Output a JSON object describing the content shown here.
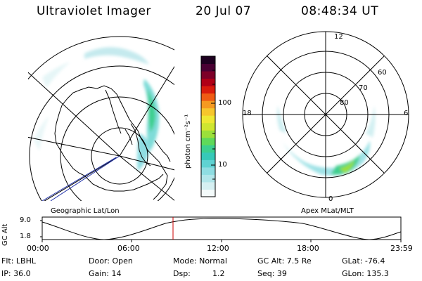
{
  "header": {
    "instrument": "Ultraviolet Imager",
    "date": "20 Jul 07",
    "time": "08:48:34 UT"
  },
  "colorbar": {
    "unit": "photon cm⁻²s⁻¹",
    "tick_100": "100",
    "tick_10": "10",
    "colors": [
      "#f4fbfb",
      "#d6f0f2",
      "#b2e6ea",
      "#8fdde2",
      "#5fd2d2",
      "#37c9b8",
      "#3ccf8f",
      "#5fd95a",
      "#9be03a",
      "#cfe630",
      "#eee833",
      "#f6c62c",
      "#f59a20",
      "#ef5b13",
      "#d91c0c",
      "#b00016",
      "#7d0028",
      "#4a0033",
      "#1e0020"
    ]
  },
  "left_map": {
    "label": "Geographic Lat/Lon"
  },
  "right_map": {
    "label": "Apex MLat/MLT",
    "mlt_12": "12",
    "mlt_18": "18",
    "mlt_6": "6",
    "mlt_0": "0",
    "lat_60": "60",
    "lat_70": "70",
    "lat_80": "80"
  },
  "altitude_plot": {
    "ylabel": "GC Alt",
    "ytick_top": "9.0",
    "ytick_bottom": "1.8",
    "xticks": [
      "00:00",
      "06:00",
      "12:00",
      "18:00",
      "23:59"
    ],
    "marker_color": "#cc0000"
  },
  "info": {
    "flt": "Flt: LBHL",
    "ip": "IP: 36.0",
    "door": "Door: Open",
    "gain": "Gain: 14",
    "mode": "Mode: Normal",
    "dsp_label": "Dsp:",
    "dsp_value": "1.2",
    "gcalt": "GC Alt: 7.5 Re",
    "seq": "Seq: 39",
    "glat": "GLat: -76.4",
    "glon": "GLon: 135.3"
  }
}
